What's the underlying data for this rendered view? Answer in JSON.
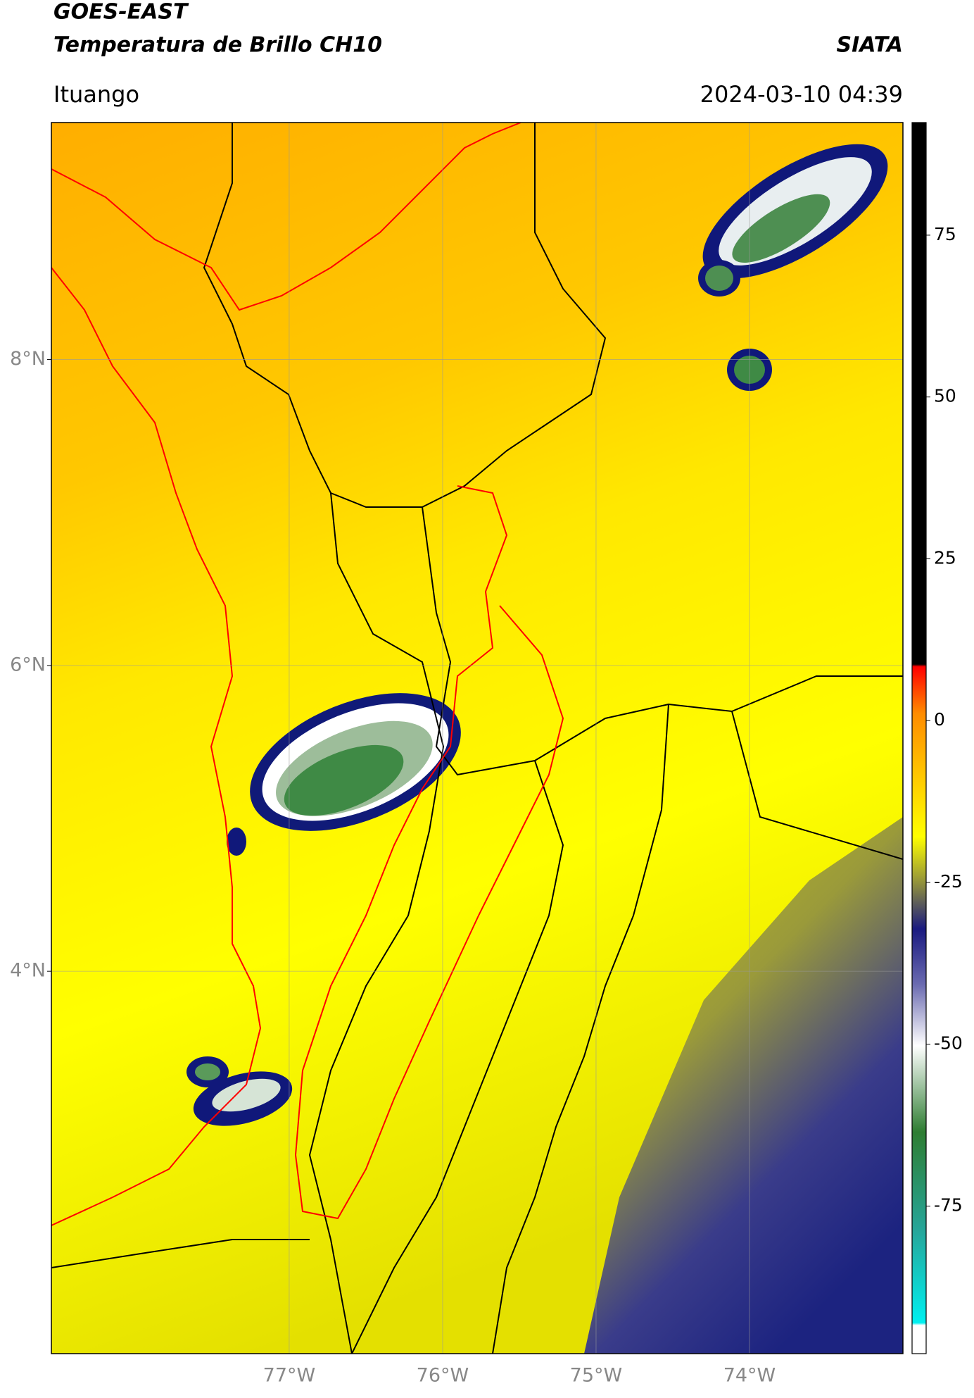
{
  "header": {
    "title": "GOES-EAST",
    "subtitle": "Temperatura de Brillo CH10",
    "agency": "SIATA",
    "location": "Ituango",
    "datetime": "2024-03-10 04:39"
  },
  "map": {
    "xlim": [
      -78.55,
      -73.0
    ],
    "ylim": [
      1.5,
      9.55
    ],
    "grid": true,
    "xticks": [
      {
        "value": -77,
        "label": "77°W"
      },
      {
        "value": -76,
        "label": "76°W"
      },
      {
        "value": -75,
        "label": "75°W"
      },
      {
        "value": -74,
        "label": "74°W"
      }
    ],
    "yticks": [
      {
        "value": 8,
        "label": "8°N"
      },
      {
        "value": 6,
        "label": "6°N"
      },
      {
        "value": 4,
        "label": "4°N"
      }
    ]
  },
  "colorbar": {
    "clim": [
      -97.8,
      92.4
    ],
    "ticks": [
      75,
      50,
      25,
      0,
      -25,
      -50,
      -75
    ]
  }
}
